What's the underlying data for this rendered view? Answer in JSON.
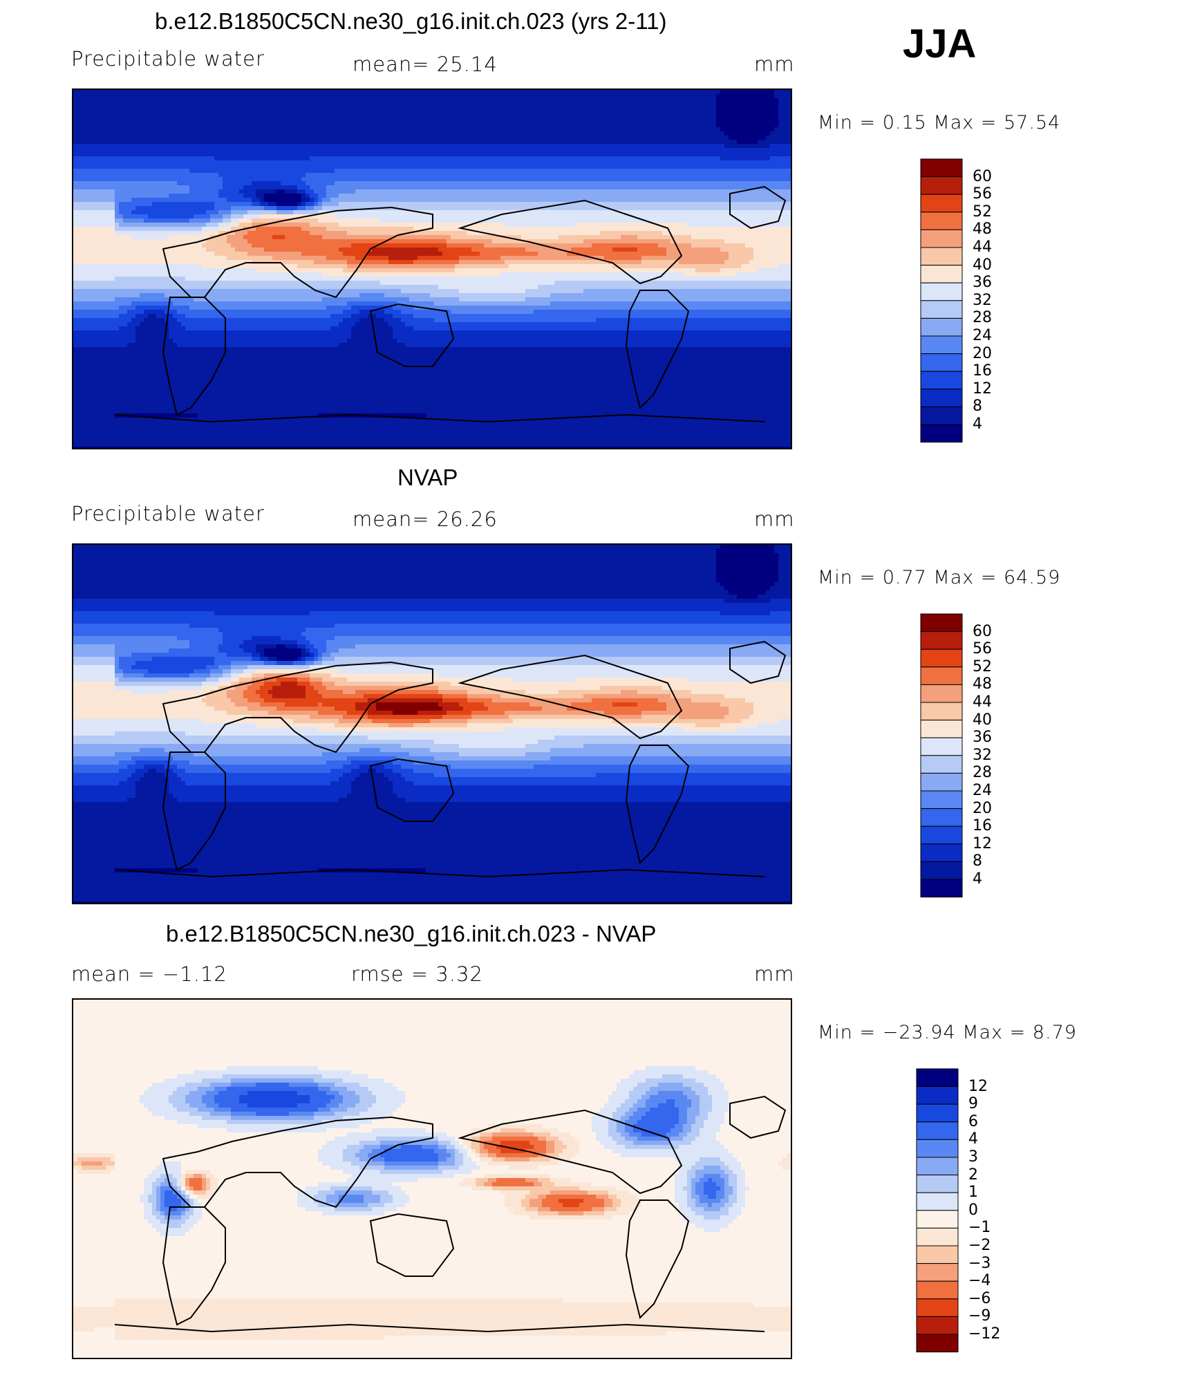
{
  "season": "JJA",
  "units": "mm",
  "panels": [
    {
      "id": "model",
      "title": "b.e12.B1850C5CN.ne30_g16.init.ch.023 (yrs 2-11)",
      "left_label": "Precipitable water",
      "center_label": "mean=   25.14",
      "right_label": "mm",
      "minmax": "Min =     0.15  Max =    57.54"
    },
    {
      "id": "obs",
      "title": "NVAP",
      "left_label": "Precipitable water",
      "center_label": "mean=   26.26",
      "right_label": "mm",
      "minmax": "Min =     0.77  Max =    64.59"
    },
    {
      "id": "diff",
      "title": "b.e12.B1850C5CN.ne30_g16.init.ch.023 - NVAP",
      "left_label": "mean =   −1.12",
      "center_label": "rmse =     3.32",
      "right_label": "mm",
      "minmax": "Min = −23.94  Max =     8.79"
    }
  ],
  "chart_data": [
    {
      "type": "heatmap",
      "title": "b.e12.B1850C5CN.ne30_g16.init.ch.023 (yrs 2-11)",
      "variable": "Precipitable water",
      "units": "mm",
      "mean": 25.14,
      "min": 0.15,
      "max": 57.54,
      "colorbar_levels": [
        4,
        8,
        12,
        16,
        20,
        24,
        28,
        32,
        36,
        40,
        44,
        48,
        52,
        56,
        60
      ],
      "colorbar_colors": [
        "#000080",
        "#0418a0",
        "#0a2cc4",
        "#1848e0",
        "#3466ee",
        "#5a88f2",
        "#88aaf4",
        "#b6caf6",
        "#dce6f8",
        "#fbe6d6",
        "#f8c8a8",
        "#f4a07c",
        "#f07040",
        "#e24416",
        "#b81e0c",
        "#800000"
      ]
    },
    {
      "type": "heatmap",
      "title": "NVAP",
      "variable": "Precipitable water",
      "units": "mm",
      "mean": 26.26,
      "min": 0.77,
      "max": 64.59,
      "colorbar_levels": [
        4,
        8,
        12,
        16,
        20,
        24,
        28,
        32,
        36,
        40,
        44,
        48,
        52,
        56,
        60
      ],
      "colorbar_colors": [
        "#000080",
        "#0418a0",
        "#0a2cc4",
        "#1848e0",
        "#3466ee",
        "#5a88f2",
        "#88aaf4",
        "#b6caf6",
        "#dce6f8",
        "#fbe6d6",
        "#f8c8a8",
        "#f4a07c",
        "#f07040",
        "#e24416",
        "#b81e0c",
        "#800000"
      ]
    },
    {
      "type": "heatmap",
      "title": "b.e12.B1850C5CN.ne30_g16.init.ch.023 - NVAP",
      "units": "mm",
      "mean": -1.12,
      "rmse": 3.32,
      "min": -23.94,
      "max": 8.79,
      "colorbar_levels": [
        "12",
        "9",
        "6",
        "4",
        "3",
        "2",
        "1",
        "0",
        "−1",
        "−2",
        "−3",
        "−4",
        "−6",
        "−9",
        "−12"
      ],
      "colorbar_colors": [
        "#800000",
        "#b81e0c",
        "#e24416",
        "#f07040",
        "#f4a07c",
        "#f8c8a8",
        "#fbe6d6",
        "#fdf2ea",
        "#dce6f8",
        "#b6caf6",
        "#88aaf4",
        "#5a88f2",
        "#3466ee",
        "#1848e0",
        "#0a2cc4",
        "#000080"
      ]
    }
  ]
}
